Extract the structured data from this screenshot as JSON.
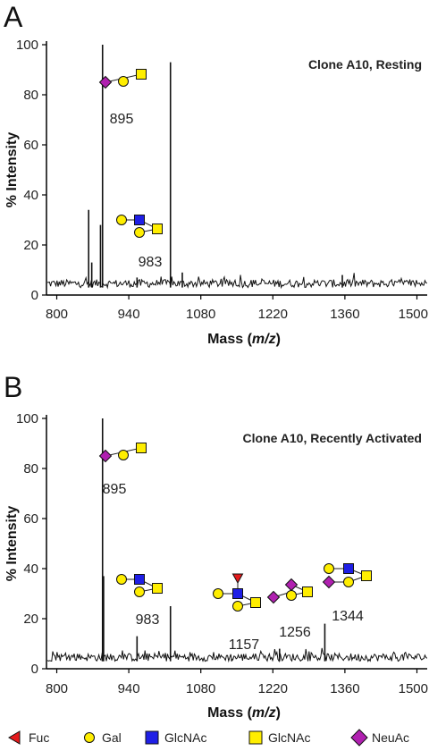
{
  "colors": {
    "fuc": "#e41a1c",
    "gal": "#ffee00",
    "glcnac_blue": "#1f1fe6",
    "glcnac_yellow": "#ffee00",
    "neuac": "#b020b0"
  },
  "legend": [
    {
      "label": "Fuc",
      "icon": "fuc-triangle-icon"
    },
    {
      "label": "Gal",
      "icon": "gal-circle-icon"
    },
    {
      "label": "GlcNAc",
      "icon": "glcnac-blue-square-icon"
    },
    {
      "label": "GlcNAc",
      "icon": "glcnac-yellow-square-icon"
    },
    {
      "label": "NeuAc",
      "icon": "neuac-diamond-icon"
    }
  ],
  "chart_data": [
    {
      "type": "line",
      "panel": "A",
      "title": "Clone A10, Resting",
      "xlabel_pre": "Mass (",
      "xlabel_italic": "m/z",
      "xlabel_post": ")",
      "ylabel": "% Intensity",
      "xlim": [
        780,
        1520
      ],
      "ylim": [
        0,
        100
      ],
      "xticks": [
        "800",
        "940",
        "1080",
        "1220",
        "1360",
        "1500"
      ],
      "xtick_values": [
        800,
        940,
        1080,
        1220,
        1360,
        1500
      ],
      "yticks": [
        "0",
        "20",
        "40",
        "60",
        "80",
        "100"
      ],
      "ytick_values": [
        0,
        20,
        40,
        60,
        80,
        100
      ],
      "peaks": [
        {
          "x": 862,
          "y": 34
        },
        {
          "x": 868,
          "y": 13
        },
        {
          "x": 885,
          "y": 28
        },
        {
          "x": 889,
          "y": 100
        },
        {
          "x": 956,
          "y": 7
        },
        {
          "x": 1021,
          "y": 93
        },
        {
          "x": 1044,
          "y": 9
        },
        {
          "x": 1355,
          "y": 8
        }
      ],
      "annotations": [
        {
          "label": "895",
          "x": 895,
          "y": 72,
          "glycan": "neuac-gal-glcnac"
        },
        {
          "label": "983",
          "x": 983,
          "y": 15,
          "glycan": "gal2-glcnac-glcnac"
        }
      ]
    },
    {
      "type": "line",
      "panel": "B",
      "title": "Clone A10, Recently Activated",
      "xlabel_pre": "Mass (",
      "xlabel_italic": "m/z",
      "xlabel_post": ")",
      "ylabel": "% Intensity",
      "xlim": [
        780,
        1520
      ],
      "ylim": [
        0,
        100
      ],
      "xticks": [
        "800",
        "940",
        "1080",
        "1220",
        "1360",
        "1500"
      ],
      "xtick_values": [
        800,
        940,
        1080,
        1220,
        1360,
        1500
      ],
      "yticks": [
        "0",
        "20",
        "40",
        "60",
        "80",
        "100"
      ],
      "ytick_values": [
        0,
        20,
        40,
        60,
        80,
        100
      ],
      "peaks": [
        {
          "x": 889,
          "y": 100
        },
        {
          "x": 891,
          "y": 37
        },
        {
          "x": 956,
          "y": 13
        },
        {
          "x": 1021,
          "y": 25
        },
        {
          "x": 1140,
          "y": 4
        },
        {
          "x": 1233,
          "y": 8
        },
        {
          "x": 1321,
          "y": 18
        },
        {
          "x": 1340,
          "y": 3
        }
      ],
      "annotations": [
        {
          "label": "895",
          "x": 895,
          "y": 78,
          "glycan": "neuac-gal-glcnac"
        },
        {
          "label": "983",
          "x": 983,
          "y": 15,
          "glycan": "gal2-glcnac-glcnac"
        },
        {
          "label": "1157",
          "x": 1157,
          "y": 15,
          "glycan": "fuc-gal2-glcnac-glcnac"
        },
        {
          "label": "1256",
          "x": 1256,
          "y": 15,
          "glycan": "neuac2-gal-glcnac"
        },
        {
          "label": "1344",
          "x": 1344,
          "y": 19,
          "glycan": "neuac-gal2-glcnac-glcnac"
        }
      ]
    }
  ]
}
